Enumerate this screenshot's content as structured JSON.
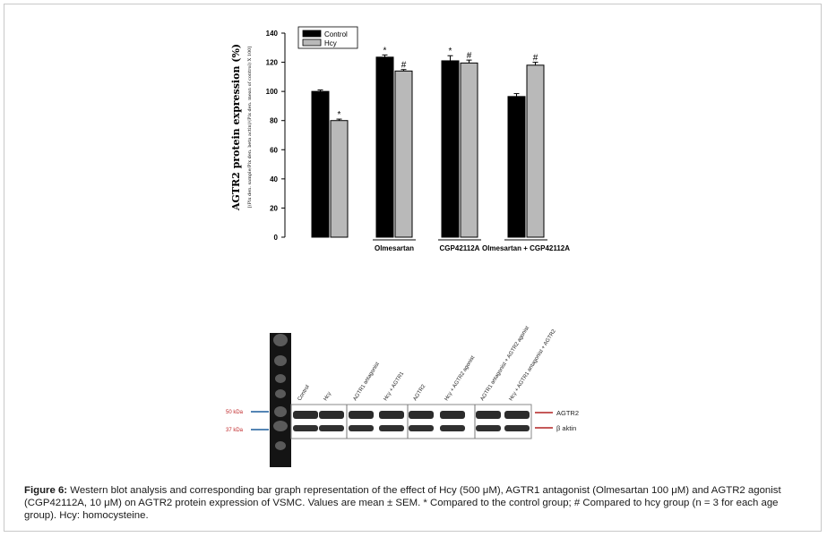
{
  "chart_data": {
    "type": "bar",
    "ylabel": "AGTR2 protein expression (%)",
    "ylabel_formula": "[(Pix den. sample/Pix den. beta actin)/(Pix den. mean of control) X 100]",
    "ylim": [
      0,
      140
    ],
    "yticks": [
      "0",
      "20",
      "40",
      "60",
      "80",
      "100",
      "120",
      "140"
    ],
    "legend_position": "top-left",
    "colors": {
      "Control": "#000000",
      "Hcy": "#b9b9b9"
    },
    "groups": [
      "",
      "Olmesartan",
      "CGP42112A",
      "Olmesartan + CGP42112A"
    ],
    "series": [
      {
        "name": "Control",
        "values": [
          100,
          123.5,
          121,
          96.5
        ],
        "errors": [
          1,
          1.5,
          3.5,
          2
        ],
        "markers": [
          "",
          "*",
          "*",
          ""
        ]
      },
      {
        "name": "Hcy",
        "values": [
          80,
          114,
          119.5,
          118
        ],
        "errors": [
          1,
          1,
          2,
          2
        ],
        "markers": [
          "*",
          "#",
          "#",
          "#"
        ]
      }
    ]
  },
  "blot": {
    "lane_labels": [
      "Control",
      "Hcy",
      "AGTR1 antagonist",
      "Hcy + AGTR1",
      "AGTR2",
      "Hcy + AGTR2 agonist",
      "AGTR1 antagonist + AGTR2 agonist",
      "Hcy + AGTR1 antagonist + AGTR2"
    ],
    "marker_labels": [
      "50 kDa",
      "37 kDa"
    ],
    "band_labels": [
      "AGTR2",
      "β aktin"
    ]
  },
  "caption": {
    "label": "Figure 6:",
    "text": " Western blot analysis and corresponding bar graph representation of the effect of Hcy (500 μM), AGTR1 antagonist (Olmesartan 100 μM) and AGTR2 agonist (CGP42112A, 10 μM) on AGTR2 protein expression of VSMC. Values are mean ± SEM. * Compared to the control group; # Compared to hcy group (n = 3 for each age group). Hcy: homocysteine."
  }
}
